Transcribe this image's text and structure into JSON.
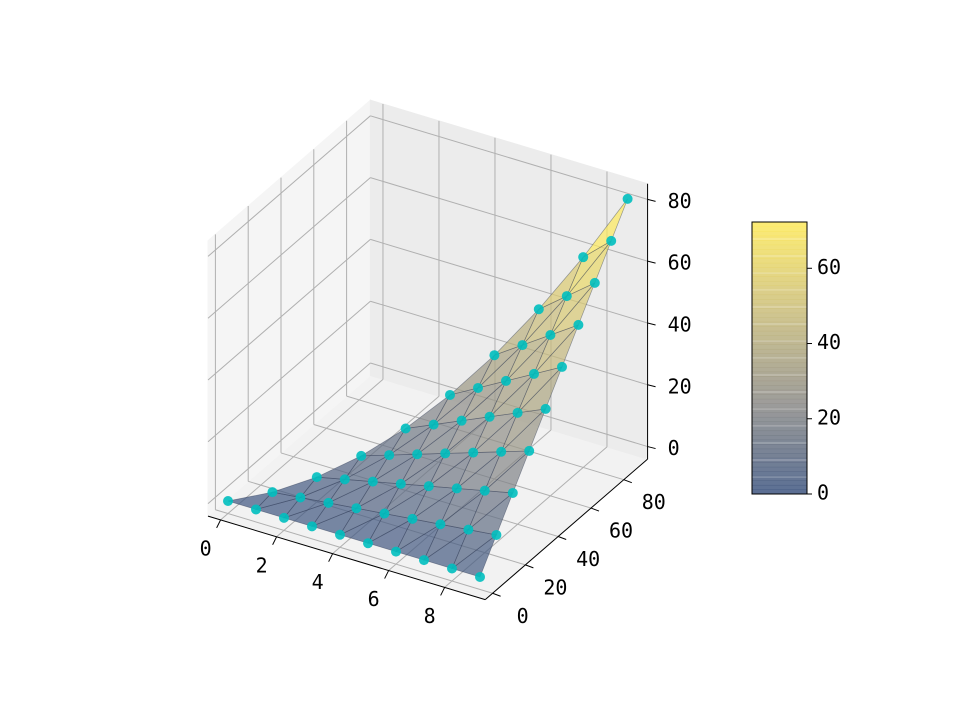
{
  "chart_data": {
    "type": "trisurf3d",
    "x": [
      0,
      1,
      1,
      2,
      2,
      2,
      3,
      3,
      3,
      3,
      4,
      4,
      4,
      4,
      4,
      5,
      5,
      5,
      5,
      5,
      5,
      6,
      6,
      6,
      6,
      6,
      6,
      6,
      7,
      7,
      7,
      7,
      7,
      7,
      7,
      7,
      8,
      8,
      8,
      8,
      8,
      8,
      8,
      8,
      8,
      9,
      9,
      9,
      9,
      9,
      9,
      9,
      9,
      9,
      9
    ],
    "y": [
      0,
      0,
      10,
      0,
      10,
      20,
      0,
      10,
      20,
      30,
      0,
      10,
      20,
      30,
      40,
      0,
      10,
      20,
      30,
      40,
      50,
      0,
      10,
      20,
      30,
      40,
      50,
      60,
      0,
      10,
      20,
      30,
      40,
      50,
      60,
      70,
      0,
      10,
      20,
      30,
      40,
      50,
      60,
      70,
      80,
      0,
      10,
      20,
      30,
      40,
      50,
      60,
      70,
      80,
      90
    ],
    "z": [
      0,
      0,
      1,
      0,
      2,
      4,
      0,
      3,
      6,
      9,
      0,
      4,
      8,
      12,
      16,
      0,
      5,
      10,
      15,
      20,
      25,
      0,
      6,
      12,
      18,
      24,
      30,
      36,
      0,
      7,
      14,
      21,
      28,
      35,
      42,
      49,
      0,
      8,
      16,
      24,
      32,
      40,
      48,
      56,
      64,
      0,
      9,
      18,
      27,
      36,
      45,
      54,
      63,
      72,
      81
    ],
    "xlim": [
      -0.45,
      9.45
    ],
    "ylim": [
      -4.5,
      94.5
    ],
    "zlim": [
      -4.05,
      85.05
    ],
    "xticks": [
      0,
      2,
      4,
      6,
      8
    ],
    "yticks": [
      0,
      20,
      40,
      60,
      80
    ],
    "zticks": [
      0,
      20,
      40,
      60,
      80
    ],
    "clim": [
      0,
      72.3
    ],
    "cticks": [
      0,
      20,
      40,
      60
    ],
    "cmap": [
      "#3d5580",
      "#8c8b88",
      "#c9bc7c",
      "#fde95c"
    ],
    "marker_color": "#00bfbf",
    "grid": true
  }
}
